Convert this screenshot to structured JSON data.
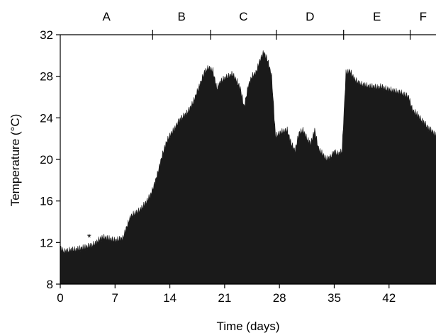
{
  "chart_data": {
    "type": "area",
    "xlabel": "Time (days)",
    "ylabel": "Temperature (°C)",
    "xlim": [
      0,
      48
    ],
    "ylim": [
      8,
      32
    ],
    "x_ticks": [
      0,
      7,
      14,
      21,
      28,
      35,
      42
    ],
    "x_tick_labels": [
      "0",
      "7",
      "14",
      "21",
      "28",
      "35",
      "42"
    ],
    "y_ticks": [
      8,
      12,
      16,
      20,
      24,
      28,
      32
    ],
    "y_tick_labels": [
      "8",
      "12",
      "16",
      "20",
      "24",
      "28",
      "32"
    ],
    "grid": false,
    "fill_color": "#1a1a1a",
    "phases": [
      {
        "label": "A",
        "start": 0,
        "end": 11.8
      },
      {
        "label": "B",
        "start": 11.8,
        "end": 19.2
      },
      {
        "label": "C",
        "start": 19.2,
        "end": 27.6
      },
      {
        "label": "D",
        "start": 27.6,
        "end": 36.2
      },
      {
        "label": "E",
        "start": 36.2,
        "end": 44.7
      },
      {
        "label": "F",
        "start": 44.7,
        "end": 48
      }
    ],
    "annotations": [
      {
        "text": "*",
        "x": 3.7,
        "y": 12.1
      }
    ],
    "series": [
      {
        "x": [
          0,
          0.5,
          1,
          1.5,
          2,
          2.5,
          3,
          3.5,
          4,
          4.5,
          5,
          5.5,
          6,
          6.5,
          7,
          7.5,
          8,
          8.5,
          9,
          9.5,
          10,
          10.5,
          11,
          11.5,
          12,
          12.5,
          13,
          13.5,
          14,
          14.5,
          15,
          15.5,
          16,
          16.5,
          17,
          17.5,
          18,
          18.5,
          19,
          19.5,
          20,
          20.5,
          21,
          21.5,
          22,
          22.5,
          23,
          23.5,
          24,
          24.5,
          25,
          25.5,
          26,
          26.5,
          27,
          27.5,
          28,
          28.5,
          29,
          29.5,
          30,
          30.5,
          31,
          31.5,
          32,
          32.5,
          33,
          33.5,
          34,
          34.5,
          35,
          35.5,
          36,
          36.5,
          37,
          37.5,
          38,
          38.5,
          39,
          39.5,
          40,
          40.5,
          41,
          41.5,
          42,
          42.5,
          43,
          43.5,
          44,
          44.5,
          45,
          45.5,
          46,
          46.5,
          47,
          47.5,
          48
        ],
        "y": [
          11.5,
          11.1,
          11.2,
          11.3,
          11.3,
          11.4,
          11.5,
          11.6,
          11.7,
          11.9,
          12.3,
          12.5,
          12.4,
          12.3,
          12.2,
          12.3,
          12.4,
          13.5,
          14.5,
          14.8,
          15.0,
          15.4,
          15.9,
          16.5,
          17.5,
          18.8,
          20.3,
          21.5,
          22.3,
          22.8,
          23.5,
          24.0,
          24.3,
          24.8,
          25.5,
          26.5,
          27.5,
          28.5,
          28.8,
          28.5,
          26.8,
          27.5,
          27.8,
          28.0,
          28.2,
          27.6,
          26.8,
          25.0,
          27.0,
          28.0,
          28.3,
          29.5,
          30.3,
          29.5,
          28.0,
          22.2,
          22.5,
          22.7,
          22.8,
          21.5,
          20.8,
          22.5,
          22.8,
          22.0,
          21.5,
          22.8,
          21.0,
          20.5,
          20.0,
          20.2,
          20.7,
          20.5,
          20.8,
          28.3,
          28.5,
          27.8,
          27.4,
          27.2,
          27.1,
          27.0,
          27.0,
          26.9,
          27.0,
          26.8,
          26.7,
          26.6,
          26.5,
          26.4,
          26.2,
          26.0,
          24.7,
          24.4,
          23.9,
          23.5,
          23.0,
          22.7,
          22.3
        ]
      }
    ]
  }
}
